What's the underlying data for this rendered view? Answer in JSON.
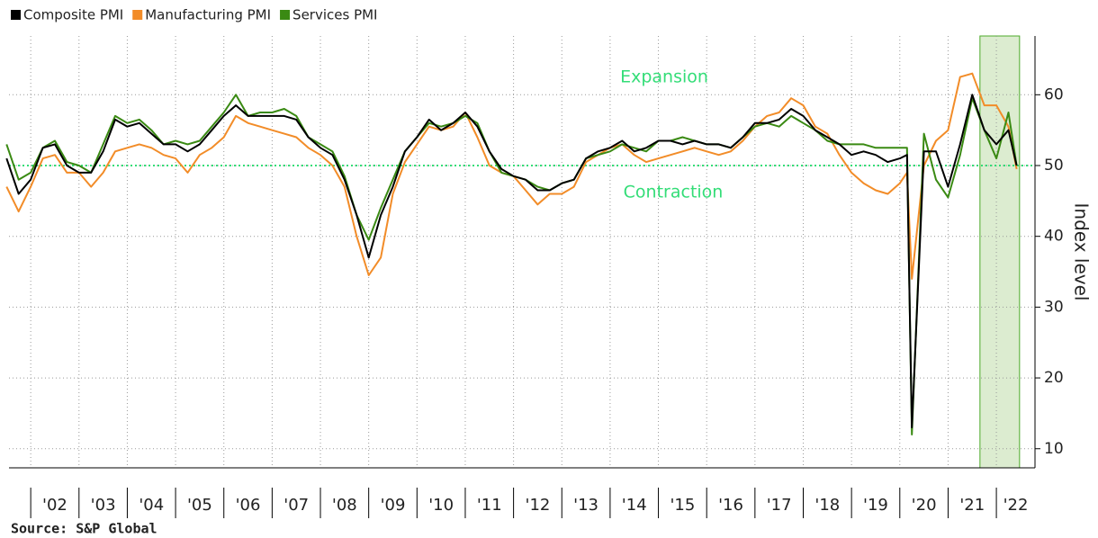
{
  "chart_data": {
    "type": "line",
    "source": "Source: S&P Global",
    "y_label": "Index level",
    "annotations": [
      "Expansion",
      "Contraction"
    ],
    "reference_line": 50,
    "highlight": [
      2021.66,
      2022.48
    ],
    "xlim": [
      2001.55,
      2022.8
    ],
    "ylim": [
      7.3,
      68.3
    ],
    "yticks": [
      10,
      20,
      30,
      40,
      50,
      60
    ],
    "xticks": [
      {
        "value": 2002,
        "label": "'02"
      },
      {
        "value": 2003,
        "label": "'03"
      },
      {
        "value": 2004,
        "label": "'04"
      },
      {
        "value": 2005,
        "label": "'05"
      },
      {
        "value": 2006,
        "label": "'06"
      },
      {
        "value": 2007,
        "label": "'07"
      },
      {
        "value": 2008,
        "label": "'08"
      },
      {
        "value": 2009,
        "label": "'09"
      },
      {
        "value": 2010,
        "label": "'10"
      },
      {
        "value": 2011,
        "label": "'11"
      },
      {
        "value": 2012,
        "label": "'12"
      },
      {
        "value": 2013,
        "label": "'13"
      },
      {
        "value": 2014,
        "label": "'14"
      },
      {
        "value": 2015,
        "label": "'15"
      },
      {
        "value": 2016,
        "label": "'16"
      },
      {
        "value": 2017,
        "label": "'17"
      },
      {
        "value": 2018,
        "label": "'18"
      },
      {
        "value": 2019,
        "label": "'19"
      },
      {
        "value": 2020,
        "label": "'20"
      },
      {
        "value": 2021,
        "label": "'21"
      },
      {
        "value": 2022,
        "label": "'22"
      }
    ],
    "grid": true,
    "x": [
      2001.5,
      2001.75,
      2002,
      2002.25,
      2002.5,
      2002.75,
      2003,
      2003.25,
      2003.5,
      2003.75,
      2004,
      2004.25,
      2004.5,
      2004.75,
      2005,
      2005.25,
      2005.5,
      2005.75,
      2006,
      2006.25,
      2006.5,
      2006.75,
      2007,
      2007.25,
      2007.5,
      2007.75,
      2008,
      2008.25,
      2008.5,
      2008.75,
      2009,
      2009.25,
      2009.5,
      2009.75,
      2010,
      2010.25,
      2010.5,
      2010.75,
      2011,
      2011.25,
      2011.5,
      2011.75,
      2012,
      2012.25,
      2012.5,
      2012.75,
      2013,
      2013.25,
      2013.5,
      2013.75,
      2014,
      2014.25,
      2014.5,
      2014.75,
      2015,
      2015.25,
      2015.5,
      2015.75,
      2016,
      2016.25,
      2016.5,
      2016.75,
      2017,
      2017.25,
      2017.5,
      2017.75,
      2018,
      2018.25,
      2018.5,
      2018.75,
      2019,
      2019.25,
      2019.5,
      2019.75,
      2020,
      2020.15,
      2020.25,
      2020.5,
      2020.75,
      2021,
      2021.25,
      2021.5,
      2021.75,
      2022,
      2022.25,
      2022.42
    ],
    "series": [
      {
        "name": "Composite PMI",
        "color": "#000000",
        "values": [
          51,
          46,
          48,
          52.5,
          53,
          50,
          49,
          49,
          52,
          56.5,
          55.5,
          56,
          54.5,
          53,
          53,
          52,
          53,
          55,
          57,
          58.5,
          57,
          57,
          57,
          57,
          56.5,
          54,
          52.5,
          51.5,
          48,
          43,
          37,
          43,
          47,
          52,
          54,
          56.5,
          55,
          56,
          57.5,
          55.5,
          52,
          49.5,
          48.5,
          48,
          46.5,
          46.5,
          47.5,
          48,
          51,
          52,
          52.5,
          53.5,
          52,
          52.5,
          53.5,
          53.5,
          53,
          53.5,
          53,
          53,
          52.5,
          54,
          56,
          56,
          56.5,
          58,
          57,
          55,
          54,
          53,
          51.5,
          52,
          51.5,
          50.5,
          51,
          51.5,
          13,
          52,
          52,
          47,
          53,
          60,
          55,
          53,
          55,
          50
        ]
      },
      {
        "name": "Manufacturing PMI",
        "color": "#f28c28",
        "values": [
          47,
          43.5,
          47,
          51,
          51.5,
          49,
          49,
          47,
          49,
          52,
          52.5,
          53,
          52.5,
          51.5,
          51,
          49,
          51.5,
          52.5,
          54,
          57,
          56,
          55.5,
          55,
          54.5,
          54,
          52.5,
          51.5,
          50,
          47,
          40,
          34.5,
          37,
          46,
          50.5,
          53,
          55.5,
          55,
          55.5,
          57.5,
          54,
          50,
          49,
          48.5,
          46.5,
          44.5,
          46,
          46,
          47,
          50.5,
          51.5,
          52.5,
          53,
          51.5,
          50.5,
          51,
          51.5,
          52,
          52.5,
          52,
          51.5,
          52,
          53.5,
          55.5,
          57,
          57.5,
          59.5,
          58.5,
          55.5,
          54.5,
          51.5,
          49,
          47.5,
          46.5,
          46,
          47.5,
          49,
          34,
          50,
          53.5,
          55,
          62.5,
          63,
          58.5,
          58.5,
          55.5,
          49.5
        ]
      },
      {
        "name": "Services PMI",
        "color": "#3a8a13",
        "values": [
          53,
          48,
          49,
          52.5,
          53.5,
          50.5,
          50,
          49,
          53,
          57,
          56,
          56.5,
          55,
          53,
          53.5,
          53,
          53.5,
          55.5,
          57.5,
          60,
          57,
          57.5,
          57.5,
          58,
          57,
          54,
          53,
          52,
          48.5,
          43,
          39.5,
          44,
          48,
          52,
          54,
          56,
          55.5,
          56,
          57,
          56,
          52,
          49,
          48.5,
          48,
          47,
          46.5,
          47.5,
          48,
          51,
          51.5,
          52,
          53,
          52.5,
          52,
          53.5,
          53.5,
          54,
          53.5,
          53,
          53,
          52.5,
          54,
          55.5,
          56,
          55.5,
          57,
          56,
          55,
          53.5,
          53,
          53,
          53,
          52.5,
          52.5,
          52.5,
          52.5,
          12,
          54.5,
          48,
          45.5,
          51.5,
          59.5,
          55,
          51,
          57.5,
          50
        ]
      }
    ]
  }
}
